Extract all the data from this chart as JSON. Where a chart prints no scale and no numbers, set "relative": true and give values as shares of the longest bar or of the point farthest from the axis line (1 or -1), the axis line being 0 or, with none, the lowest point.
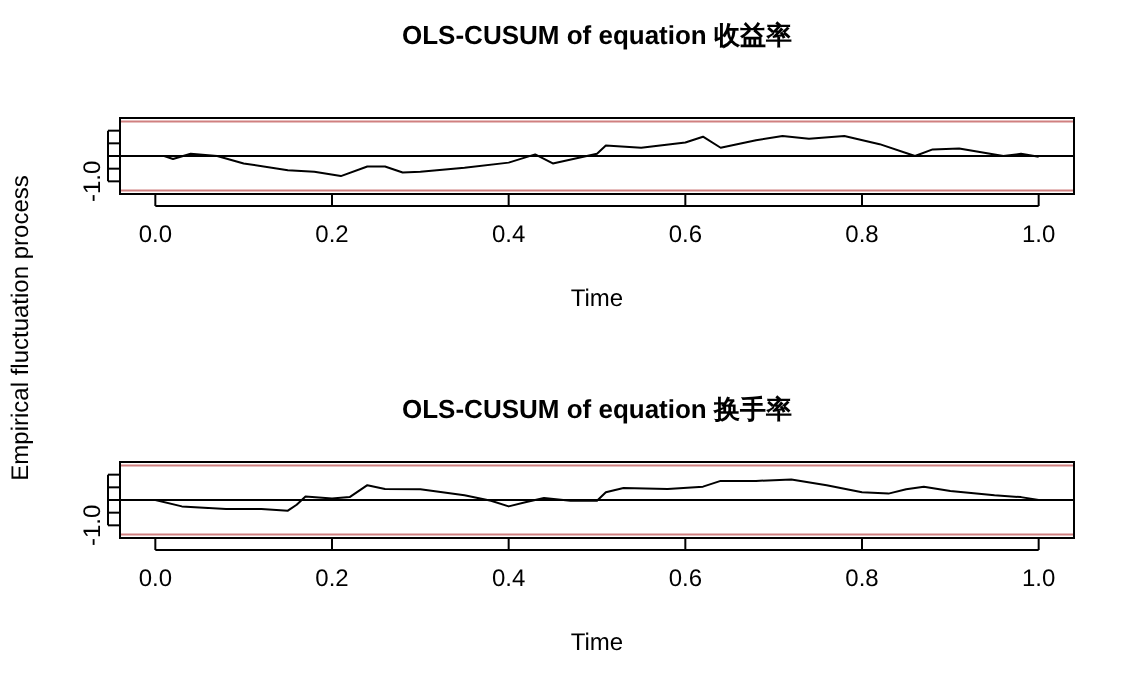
{
  "chart_data": [
    {
      "type": "line",
      "title": "OLS-CUSUM of equation 收益率",
      "xlabel": "Time",
      "ylabel": "Empirical fluctuation process",
      "relative": true,
      "xlim": [
        -0.04,
        1.04
      ],
      "xticks": [
        {
          "value": 0,
          "label": "0.0"
        },
        {
          "value": 0.2,
          "label": "0.2"
        },
        {
          "value": 0.4,
          "label": "0.4"
        },
        {
          "value": 0.6,
          "label": "0.6"
        },
        {
          "value": 0.8,
          "label": "0.8"
        },
        {
          "value": 1,
          "label": "1.0"
        }
      ],
      "annotations": [
        "-1.0"
      ],
      "ref_lines": [
        {
          "axis": "y",
          "value": 0,
          "color": "#000000"
        },
        {
          "axis": "y",
          "value": 1.72,
          "color": "#d08080"
        },
        {
          "axis": "y",
          "value": -1.72,
          "color": "#d08080"
        }
      ],
      "series": [
        {
          "color": "#000000",
          "x": [
            0.01,
            0.02,
            0.04,
            0.07,
            0.1,
            0.15,
            0.18,
            0.21,
            0.24,
            0.26,
            0.28,
            0.3,
            0.35,
            0.4,
            0.43,
            0.45,
            0.5,
            0.51,
            0.55,
            0.6,
            0.62,
            0.64,
            0.68,
            0.71,
            0.74,
            0.78,
            0.82,
            0.86,
            0.88,
            0.91,
            0.94,
            0.96,
            0.98,
            1.0
          ],
          "values": [
            0,
            -0.15,
            0.11,
            0,
            -0.37,
            -0.71,
            -0.78,
            -1,
            -0.52,
            -0.52,
            -0.82,
            -0.78,
            -0.59,
            -0.33,
            0.08,
            -0.37,
            0.11,
            0.52,
            0.41,
            0.67,
            0.96,
            0.41,
            0.78,
            1,
            0.86,
            1,
            0.59,
            0,
            0.33,
            0.37,
            0.15,
            0,
            0.11,
            -0.04
          ]
        }
      ]
    },
    {
      "type": "line",
      "title": "OLS-CUSUM of equation 换手率",
      "xlabel": "Time",
      "relative": true,
      "xlim": [
        -0.04,
        1.04
      ],
      "xticks": [
        {
          "value": 0,
          "label": "0.0"
        },
        {
          "value": 0.2,
          "label": "0.2"
        },
        {
          "value": 0.4,
          "label": "0.4"
        },
        {
          "value": 0.6,
          "label": "0.6"
        },
        {
          "value": 0.8,
          "label": "0.8"
        },
        {
          "value": 1,
          "label": "1.0"
        }
      ],
      "annotations": [
        "-1.0"
      ],
      "ref_lines": [
        {
          "axis": "y",
          "value": 0,
          "color": "#000000"
        },
        {
          "axis": "y",
          "value": 1.68,
          "color": "#d08080"
        },
        {
          "axis": "y",
          "value": -1.68,
          "color": "#d08080"
        }
      ],
      "series": [
        {
          "color": "#000000",
          "x": [
            0.0,
            0.03,
            0.08,
            0.12,
            0.15,
            0.16,
            0.17,
            0.2,
            0.22,
            0.24,
            0.26,
            0.3,
            0.35,
            0.38,
            0.4,
            0.42,
            0.44,
            0.47,
            0.5,
            0.51,
            0.53,
            0.58,
            0.62,
            0.64,
            0.68,
            0.72,
            0.76,
            0.8,
            0.83,
            0.85,
            0.87,
            0.9,
            0.95,
            0.98,
            1.0
          ],
          "values": [
            0,
            -0.31,
            -0.44,
            -0.44,
            -0.52,
            -0.23,
            0.17,
            0.07,
            0.14,
            0.72,
            0.54,
            0.52,
            0.23,
            -0.04,
            -0.31,
            -0.1,
            0.1,
            -0.04,
            -0.04,
            0.38,
            0.58,
            0.54,
            0.65,
            0.93,
            0.93,
            1,
            0.72,
            0.38,
            0.31,
            0.52,
            0.65,
            0.44,
            0.23,
            0.14,
            0
          ]
        }
      ]
    }
  ]
}
